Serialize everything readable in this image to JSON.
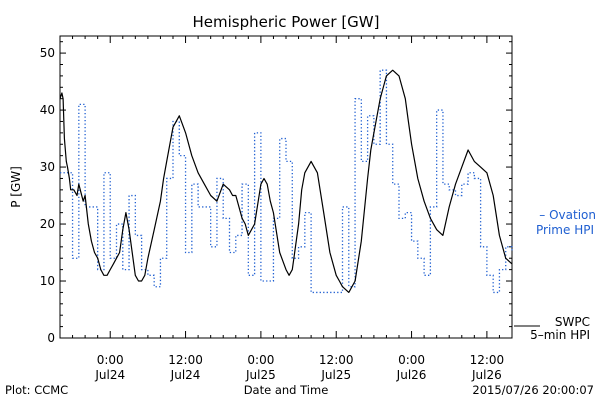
{
  "chart_data": {
    "type": "line",
    "title": "Hemispheric Power [GW]",
    "xlabel": "Date and Time",
    "ylabel": "P [GW]",
    "ylim": [
      0,
      53
    ],
    "yticks": [
      0,
      10,
      20,
      30,
      40,
      50
    ],
    "xlim_hours": [
      -8,
      64
    ],
    "xticks": [
      {
        "h": 0,
        "time": "0:00",
        "date": "Jul24"
      },
      {
        "h": 12,
        "time": "12:00",
        "date": "Jul24"
      },
      {
        "h": 24,
        "time": "0:00",
        "date": "Jul25"
      },
      {
        "h": 36,
        "time": "12:00",
        "date": "Jul25"
      },
      {
        "h": 48,
        "time": "0:00",
        "date": "Jul26"
      },
      {
        "h": 60,
        "time": "12:00",
        "date": "Jul26"
      }
    ],
    "grid": false,
    "series": [
      {
        "name": "5-min HPI",
        "source": "SWPC",
        "style": "solid",
        "color": "#000000",
        "x": [
          -8.0,
          -7.7,
          -7.5,
          -7.3,
          -7.0,
          -6.8,
          -6.5,
          -6.3,
          -5.8,
          -5.3,
          -5.0,
          -4.3,
          -4.0,
          -3.5,
          -3.0,
          -2.5,
          -2.0,
          -1.5,
          -1.0,
          -0.5,
          0.0,
          0.5,
          1.0,
          1.5,
          2.0,
          2.5,
          3.0,
          3.5,
          4.0,
          4.5,
          5.0,
          5.5,
          6.0,
          7.0,
          8.0,
          8.5,
          9.0,
          10.0,
          11.0,
          12.0,
          13.0,
          14.0,
          15.0,
          16.0,
          17.0,
          18.0,
          19.0,
          19.5,
          20.0,
          21.0,
          21.5,
          22.0,
          23.0,
          24.0,
          24.5,
          25.0,
          25.5,
          26.0,
          27.0,
          28.0,
          28.5,
          29.0,
          30.0,
          30.5,
          31.0,
          32.0,
          33.0,
          34.0,
          35.0,
          36.0,
          36.5,
          37.0,
          38.0,
          39.0,
          40.0,
          41.0,
          41.5,
          42.0,
          43.0,
          44.0,
          45.0,
          46.0,
          47.0,
          47.5,
          48.0,
          48.5,
          49.0,
          50.0,
          51.0,
          52.0,
          53.0,
          54.0,
          55.0,
          56.0,
          57.0,
          58.0,
          59.0,
          60.0,
          61.0,
          62.0,
          63.0,
          64.0
        ],
        "values": [
          42,
          43,
          42,
          35,
          31,
          30,
          28,
          26,
          26,
          25,
          27,
          24,
          25,
          20,
          17,
          15,
          14,
          12,
          11,
          11,
          12,
          13,
          14,
          15,
          19,
          22,
          19,
          15,
          11,
          10,
          10,
          11,
          14,
          19,
          24,
          28,
          31,
          37,
          39,
          36,
          32,
          29,
          27,
          25,
          24,
          27,
          26,
          25,
          25,
          21,
          20,
          18,
          20,
          27,
          28,
          27,
          24,
          22,
          15,
          12,
          11,
          12,
          20,
          26,
          29,
          31,
          29,
          22,
          15,
          11,
          10,
          9,
          8,
          10,
          17,
          28,
          33,
          36,
          42,
          46,
          47,
          46,
          42,
          38,
          34,
          31,
          28,
          24,
          21,
          19,
          18,
          23,
          27,
          30,
          33,
          31,
          30,
          29,
          25,
          18,
          14,
          13
        ]
      },
      {
        "name": "Ovation Prime HPI",
        "style": "dotted-step",
        "color": "#1f5fd1",
        "x": [
          -8,
          -6,
          -5,
          -4,
          -2,
          -1,
          0,
          1,
          2,
          3,
          4,
          5,
          6,
          7,
          8,
          9,
          10,
          11,
          12,
          13,
          14,
          15,
          16,
          17,
          18,
          19,
          20,
          21,
          22,
          23,
          24,
          25,
          26,
          27,
          28,
          29,
          30,
          31,
          32,
          33,
          34,
          35,
          36,
          37,
          38,
          39,
          40,
          41,
          42,
          43,
          44,
          45,
          46,
          47,
          48,
          49,
          50,
          51,
          52,
          53,
          54,
          55,
          56,
          57,
          58,
          59,
          60,
          61,
          62,
          63,
          64
        ],
        "values": [
          29,
          14,
          41,
          23,
          12,
          29,
          14,
          20,
          12,
          25,
          18,
          12,
          11,
          9,
          14,
          28,
          38,
          32,
          15,
          27,
          23,
          23,
          16,
          28,
          21,
          15,
          18,
          27,
          11,
          36,
          10,
          10,
          21,
          35,
          31,
          14,
          16,
          22,
          8,
          8,
          8,
          8,
          8,
          23,
          9,
          42,
          31,
          39,
          34,
          47,
          34,
          27,
          21,
          22,
          17,
          14,
          11,
          23,
          40,
          27,
          26,
          25,
          27,
          29,
          28,
          16,
          11,
          8,
          12,
          16,
          15
        ]
      }
    ],
    "legend": [
      {
        "text_top": "– Ovation",
        "text_bottom": "Prime HPI",
        "color": "#1f5fd1"
      },
      {
        "text_top": "SWPC",
        "text_bottom": "5–min HPI",
        "color": "#000000"
      }
    ],
    "footer_left": "Plot: CCMC",
    "footer_right": "2015/07/26 20:00:07"
  }
}
